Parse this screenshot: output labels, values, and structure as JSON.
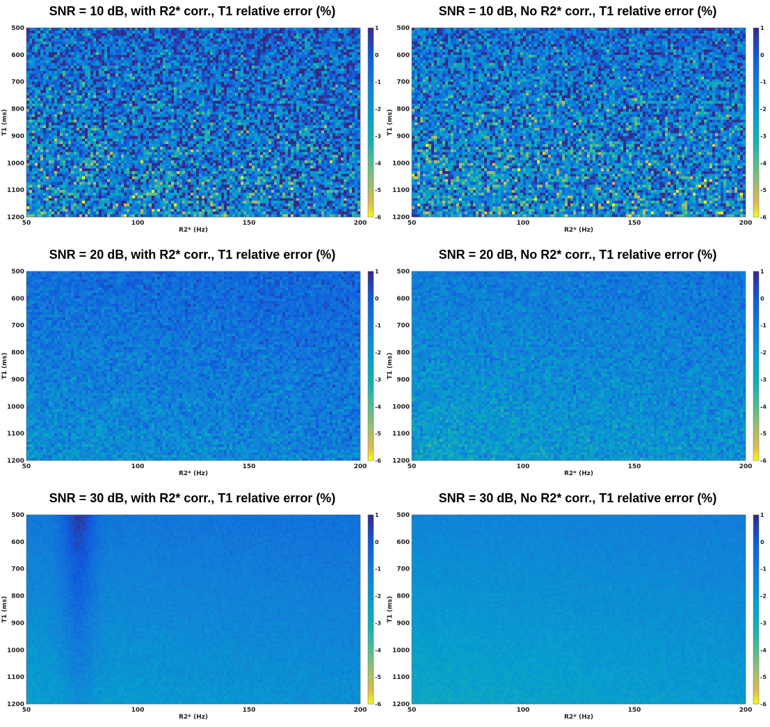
{
  "chart_data": [
    {
      "type": "heatmap",
      "title": "SNR = 10 dB, with R2* corr., T1 relative error (%)",
      "xlabel": "R2* (Hz)",
      "ylabel": "T1 (ms)",
      "xlim": [
        50,
        200
      ],
      "ylim": [
        500,
        1200
      ],
      "y_reversed": true,
      "xticks": [
        "50",
        "100",
        "150",
        "200"
      ],
      "yticks": [
        "500",
        "600",
        "700",
        "800",
        "900",
        "1000",
        "1100",
        "1200"
      ],
      "colorbar": {
        "min": -6,
        "max": 1,
        "ticks": [
          "1",
          "0",
          "-1",
          "-2",
          "-3",
          "-4",
          "-5",
          "-6"
        ],
        "colormap": "parula",
        "reversed": true
      },
      "pattern": "noisy",
      "noise_amplitude": 1.6,
      "mean_error_percent": -0.8,
      "band_R2star_Hz": null
    },
    {
      "type": "heatmap",
      "title": "SNR = 10 dB, No R2* corr., T1 relative error (%)",
      "xlabel": "R2* (Hz)",
      "ylabel": "T1 (ms)",
      "xlim": [
        50,
        200
      ],
      "ylim": [
        500,
        1200
      ],
      "y_reversed": true,
      "xticks": [
        "50",
        "100",
        "150",
        "200"
      ],
      "yticks": [
        "500",
        "600",
        "700",
        "800",
        "900",
        "1000",
        "1100",
        "1200"
      ],
      "colorbar": {
        "min": -6,
        "max": 1,
        "ticks": [
          "1",
          "0",
          "-1",
          "-2",
          "-3",
          "-4",
          "-5",
          "-6"
        ],
        "colormap": "parula",
        "reversed": true
      },
      "pattern": "noisy",
      "noise_amplitude": 1.6,
      "mean_error_percent": -1.1,
      "band_R2star_Hz": null
    },
    {
      "type": "heatmap",
      "title": "SNR = 20 dB, with R2* corr., T1 relative error (%)",
      "xlabel": "R2* (Hz)",
      "ylabel": "T1 (ms)",
      "xlim": [
        50,
        200
      ],
      "ylim": [
        500,
        1200
      ],
      "y_reversed": true,
      "xticks": [
        "50",
        "100",
        "150",
        "200"
      ],
      "yticks": [
        "500",
        "600",
        "700",
        "800",
        "900",
        "1000",
        "1100",
        "1200"
      ],
      "colorbar": {
        "min": -6,
        "max": 1,
        "ticks": [
          "1",
          "0",
          "-1",
          "-2",
          "-3",
          "-4",
          "-5",
          "-6"
        ],
        "colormap": "parula",
        "reversed": true
      },
      "pattern": "moderate",
      "noise_amplitude": 0.5,
      "mean_error_percent": -0.9,
      "band_R2star_Hz": null
    },
    {
      "type": "heatmap",
      "title": "SNR = 20 dB, No R2* corr., T1 relative error (%)",
      "xlabel": "R2* (Hz)",
      "ylabel": "T1 (ms)",
      "xlim": [
        50,
        200
      ],
      "ylim": [
        500,
        1200
      ],
      "y_reversed": true,
      "xticks": [
        "50",
        "100",
        "150",
        "200"
      ],
      "yticks": [
        "500",
        "600",
        "700",
        "800",
        "900",
        "1000",
        "1100",
        "1200"
      ],
      "colorbar": {
        "min": -6,
        "max": 1,
        "ticks": [
          "1",
          "0",
          "-1",
          "-2",
          "-3",
          "-4",
          "-5",
          "-6"
        ],
        "colormap": "parula",
        "reversed": true
      },
      "pattern": "moderate",
      "noise_amplitude": 0.5,
      "mean_error_percent": -1.4,
      "band_R2star_Hz": null
    },
    {
      "type": "heatmap",
      "title": "SNR = 30 dB, with R2* corr., T1 relative error (%)",
      "xlabel": "R2* (Hz)",
      "ylabel": "T1 (ms)",
      "xlim": [
        50,
        200
      ],
      "ylim": [
        500,
        1200
      ],
      "y_reversed": true,
      "xticks": [
        "50",
        "100",
        "150",
        "200"
      ],
      "yticks": [
        "500",
        "600",
        "700",
        "800",
        "900",
        "1000",
        "1100",
        "1200"
      ],
      "colorbar": {
        "min": -6,
        "max": 1,
        "ticks": [
          "1",
          "0",
          "-1",
          "-2",
          "-3",
          "-4",
          "-5",
          "-6"
        ],
        "colormap": "parula",
        "reversed": true
      },
      "pattern": "smooth",
      "noise_amplitude": 0.15,
      "mean_error_percent": -1.3,
      "band_R2star_Hz": [
        64,
        82
      ]
    },
    {
      "type": "heatmap",
      "title": "SNR = 30 dB, No R2* corr., T1 relative error (%)",
      "xlabel": "R2* (Hz)",
      "ylabel": "T1 (ms)",
      "xlim": [
        50,
        200
      ],
      "ylim": [
        500,
        1200
      ],
      "y_reversed": true,
      "xticks": [
        "50",
        "100",
        "150",
        "200"
      ],
      "yticks": [
        "500",
        "600",
        "700",
        "800",
        "900",
        "1000",
        "1100",
        "1200"
      ],
      "colorbar": {
        "min": -6,
        "max": 1,
        "ticks": [
          "1",
          "0",
          "-1",
          "-2",
          "-3",
          "-4",
          "-5",
          "-6"
        ],
        "colormap": "parula",
        "reversed": true
      },
      "pattern": "smooth",
      "noise_amplitude": 0.15,
      "mean_error_percent": -1.7,
      "band_R2star_Hz": null
    }
  ]
}
